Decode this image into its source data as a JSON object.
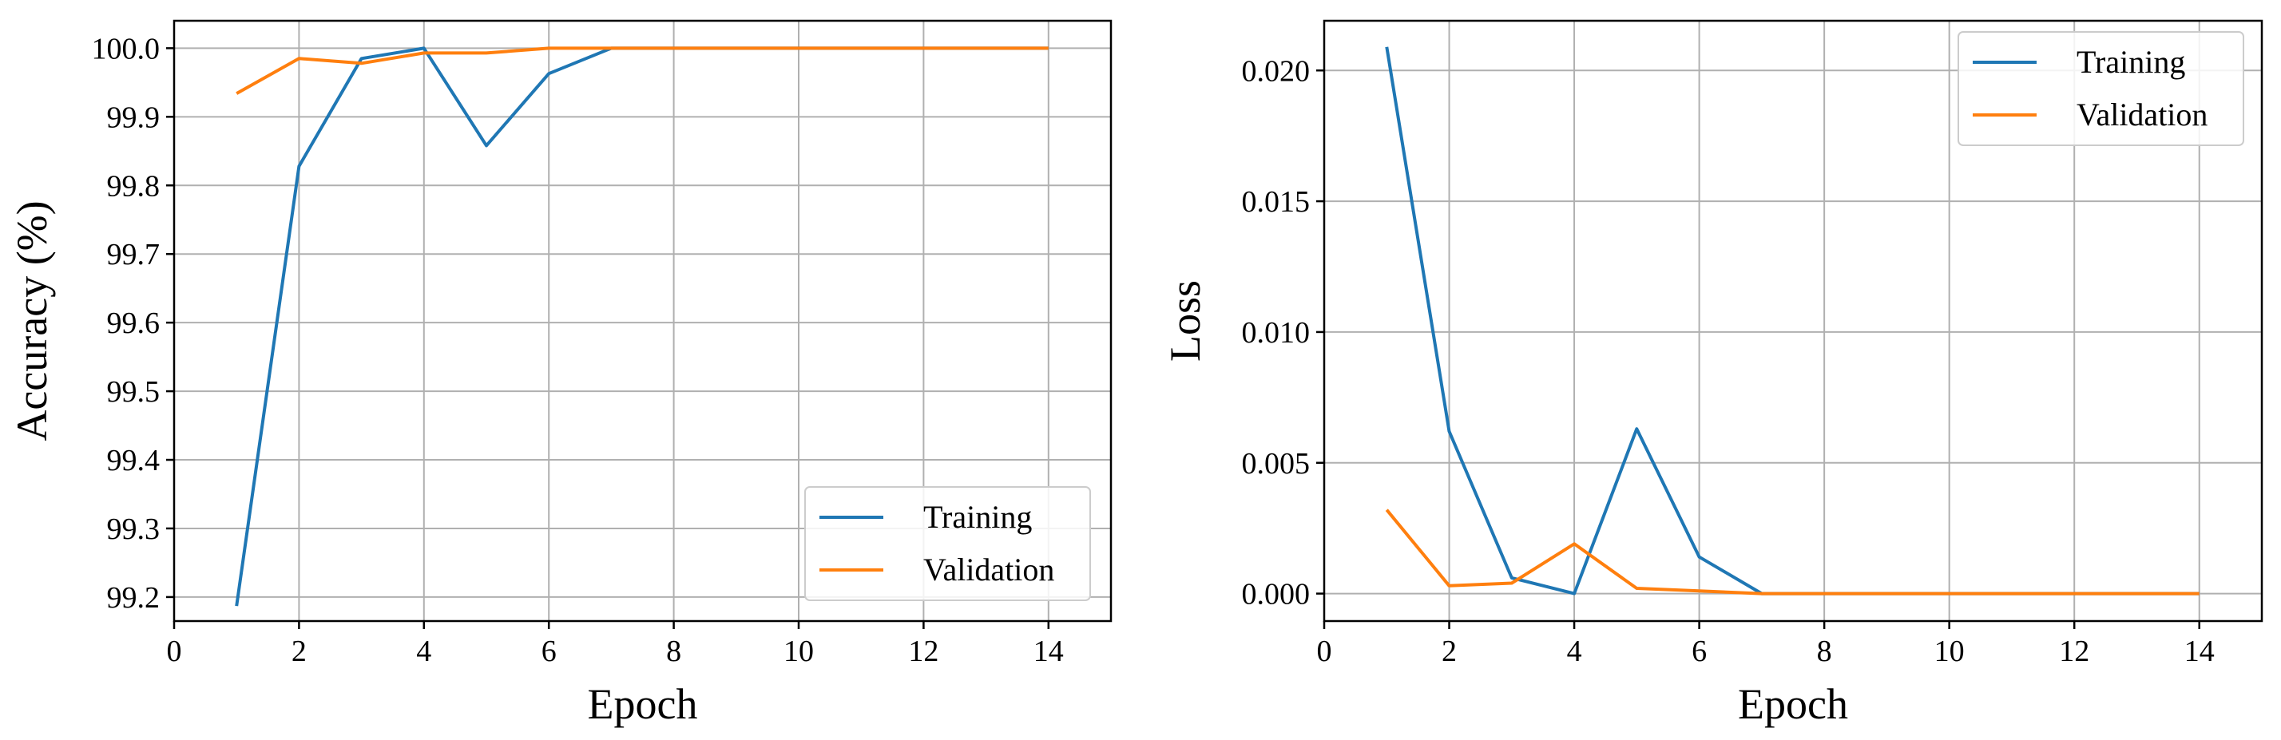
{
  "chart_data": [
    {
      "type": "line",
      "xlabel": "Epoch",
      "ylabel": "Accuracy (%)",
      "xlim": [
        0,
        15
      ],
      "ylim": [
        99.165,
        100.04
      ],
      "xticks": [
        0,
        2,
        4,
        6,
        8,
        10,
        12,
        14
      ],
      "xtick_labels": [
        "0",
        "2",
        "4",
        "6",
        "8",
        "10",
        "12",
        "14"
      ],
      "yticks": [
        99.2,
        99.3,
        99.4,
        99.5,
        99.6,
        99.7,
        99.8,
        99.9,
        100.0
      ],
      "ytick_labels": [
        "99.2",
        "99.3",
        "99.4",
        "99.5",
        "99.6",
        "99.7",
        "99.8",
        "99.9",
        "100.0"
      ],
      "grid": true,
      "legend_location": "lower-right",
      "x": [
        1,
        2,
        3,
        4,
        5,
        6,
        7,
        8,
        9,
        10,
        11,
        12,
        13,
        14
      ],
      "series": [
        {
          "name": "Training",
          "color": "#1f77b4",
          "values": [
            99.187,
            99.828,
            99.985,
            100.0,
            99.858,
            99.963,
            100.0,
            100.0,
            100.0,
            100.0,
            100.0,
            100.0,
            100.0,
            100.0
          ]
        },
        {
          "name": "Validation",
          "color": "#ff7f0e",
          "values": [
            99.934,
            99.985,
            99.978,
            99.993,
            99.993,
            100.0,
            100.0,
            100.0,
            100.0,
            100.0,
            100.0,
            100.0,
            100.0,
            100.0
          ]
        }
      ]
    },
    {
      "type": "line",
      "xlabel": "Epoch",
      "ylabel": "Loss",
      "xlim": [
        0,
        15
      ],
      "ylim": [
        -0.00105,
        0.0219
      ],
      "xticks": [
        0,
        2,
        4,
        6,
        8,
        10,
        12,
        14
      ],
      "xtick_labels": [
        "0",
        "2",
        "4",
        "6",
        "8",
        "10",
        "12",
        "14"
      ],
      "yticks": [
        0.0,
        0.005,
        0.01,
        0.015,
        0.02
      ],
      "ytick_labels": [
        "0.000",
        "0.005",
        "0.010",
        "0.015",
        "0.020"
      ],
      "grid": true,
      "legend_location": "upper-right",
      "x": [
        1,
        2,
        3,
        4,
        5,
        6,
        7,
        8,
        9,
        10,
        11,
        12,
        13,
        14
      ],
      "series": [
        {
          "name": "Training",
          "color": "#1f77b4",
          "values": [
            0.0209,
            0.0062,
            0.0006,
            0.0,
            0.0063,
            0.0014,
            0.0,
            0.0,
            0.0,
            0.0,
            0.0,
            0.0,
            0.0,
            0.0
          ]
        },
        {
          "name": "Validation",
          "color": "#ff7f0e",
          "values": [
            0.0032,
            0.0003,
            0.0004,
            0.0019,
            0.0002,
            0.0001,
            0.0,
            0.0,
            0.0,
            0.0,
            0.0,
            0.0,
            0.0,
            0.0
          ]
        }
      ]
    }
  ]
}
